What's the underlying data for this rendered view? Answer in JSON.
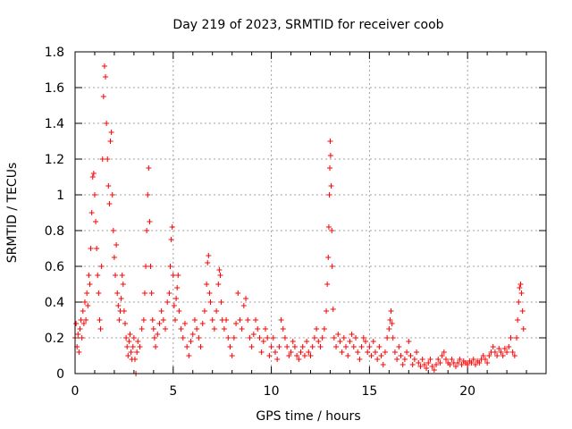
{
  "chart_data": {
    "type": "scatter",
    "title": "Day 219 of 2023, SRMTID for receiver coob",
    "xlabel": "GPS time / hours",
    "ylabel": "SRMTID / TECUs",
    "xlim": [
      0,
      24
    ],
    "ylim": [
      0,
      1.8
    ],
    "xticks": [
      0,
      5,
      10,
      15,
      20
    ],
    "yticks": [
      0,
      0.2,
      0.4,
      0.6,
      0.8,
      1,
      1.2,
      1.4,
      1.6,
      1.8
    ],
    "ytick_labels": [
      "0",
      "0.2",
      "0.4",
      "0.6",
      "0.8",
      "1",
      "1.2",
      "1.4",
      "1.6",
      "1.8"
    ],
    "grid": true,
    "marker": "+",
    "series": [
      {
        "name": "SRMTID",
        "color": "#ff0000",
        "points": [
          [
            0.0,
            0.2
          ],
          [
            0.05,
            0.28
          ],
          [
            0.1,
            0.15
          ],
          [
            0.15,
            0.22
          ],
          [
            0.2,
            0.12
          ],
          [
            0.25,
            0.25
          ],
          [
            0.3,
            0.3
          ],
          [
            0.35,
            0.2
          ],
          [
            0.4,
            0.35
          ],
          [
            0.45,
            0.28
          ],
          [
            0.5,
            0.4
          ],
          [
            0.55,
            0.3
          ],
          [
            0.6,
            0.45
          ],
          [
            0.65,
            0.38
          ],
          [
            0.7,
            0.55
          ],
          [
            0.75,
            0.5
          ],
          [
            0.8,
            0.7
          ],
          [
            0.85,
            0.9
          ],
          [
            0.9,
            1.1
          ],
          [
            0.95,
            1.12
          ],
          [
            1.0,
            1.0
          ],
          [
            1.05,
            0.85
          ],
          [
            1.1,
            0.7
          ],
          [
            1.15,
            0.55
          ],
          [
            1.2,
            0.45
          ],
          [
            1.25,
            0.3
          ],
          [
            1.3,
            0.25
          ],
          [
            1.35,
            0.6
          ],
          [
            1.4,
            1.2
          ],
          [
            1.45,
            1.55
          ],
          [
            1.5,
            1.72
          ],
          [
            1.55,
            1.66
          ],
          [
            1.6,
            1.4
          ],
          [
            1.65,
            1.2
          ],
          [
            1.7,
            1.05
          ],
          [
            1.75,
            0.95
          ],
          [
            1.8,
            1.3
          ],
          [
            1.85,
            1.35
          ],
          [
            1.9,
            1.0
          ],
          [
            1.95,
            0.8
          ],
          [
            2.0,
            0.65
          ],
          [
            2.05,
            0.55
          ],
          [
            2.1,
            0.72
          ],
          [
            2.15,
            0.45
          ],
          [
            2.2,
            0.38
          ],
          [
            2.25,
            0.3
          ],
          [
            2.3,
            0.35
          ],
          [
            2.35,
            0.42
          ],
          [
            2.4,
            0.55
          ],
          [
            2.45,
            0.5
          ],
          [
            2.5,
            0.35
          ],
          [
            2.55,
            0.28
          ],
          [
            2.6,
            0.2
          ],
          [
            2.65,
            0.15
          ],
          [
            2.7,
            0.1
          ],
          [
            2.75,
            0.18
          ],
          [
            2.8,
            0.22
          ],
          [
            2.85,
            0.12
          ],
          [
            2.9,
            0.08
          ],
          [
            2.95,
            0.15
          ],
          [
            3.0,
            0.2
          ],
          [
            3.05,
            0.08
          ],
          [
            3.1,
            0.0
          ],
          [
            3.15,
            0.12
          ],
          [
            3.2,
            0.18
          ],
          [
            3.3,
            0.15
          ],
          [
            3.4,
            0.25
          ],
          [
            3.5,
            0.3
          ],
          [
            3.55,
            0.45
          ],
          [
            3.6,
            0.6
          ],
          [
            3.65,
            0.8
          ],
          [
            3.7,
            1.0
          ],
          [
            3.75,
            1.15
          ],
          [
            3.8,
            0.85
          ],
          [
            3.85,
            0.6
          ],
          [
            3.9,
            0.45
          ],
          [
            3.95,
            0.3
          ],
          [
            4.0,
            0.25
          ],
          [
            4.05,
            0.2
          ],
          [
            4.1,
            0.15
          ],
          [
            4.2,
            0.22
          ],
          [
            4.3,
            0.28
          ],
          [
            4.4,
            0.35
          ],
          [
            4.5,
            0.3
          ],
          [
            4.6,
            0.25
          ],
          [
            4.7,
            0.4
          ],
          [
            4.8,
            0.45
          ],
          [
            4.85,
            0.6
          ],
          [
            4.9,
            0.75
          ],
          [
            4.95,
            0.82
          ],
          [
            5.0,
            0.55
          ],
          [
            5.05,
            0.38
          ],
          [
            5.1,
            0.3
          ],
          [
            5.15,
            0.42
          ],
          [
            5.2,
            0.48
          ],
          [
            5.25,
            0.55
          ],
          [
            5.3,
            0.35
          ],
          [
            5.4,
            0.25
          ],
          [
            5.5,
            0.2
          ],
          [
            5.6,
            0.28
          ],
          [
            5.7,
            0.15
          ],
          [
            5.8,
            0.1
          ],
          [
            5.9,
            0.18
          ],
          [
            6.0,
            0.22
          ],
          [
            6.1,
            0.3
          ],
          [
            6.2,
            0.25
          ],
          [
            6.3,
            0.2
          ],
          [
            6.4,
            0.15
          ],
          [
            6.5,
            0.28
          ],
          [
            6.6,
            0.35
          ],
          [
            6.7,
            0.5
          ],
          [
            6.75,
            0.62
          ],
          [
            6.8,
            0.66
          ],
          [
            6.85,
            0.45
          ],
          [
            6.9,
            0.4
          ],
          [
            7.0,
            0.3
          ],
          [
            7.1,
            0.25
          ],
          [
            7.2,
            0.35
          ],
          [
            7.3,
            0.5
          ],
          [
            7.35,
            0.58
          ],
          [
            7.4,
            0.55
          ],
          [
            7.45,
            0.4
          ],
          [
            7.5,
            0.3
          ],
          [
            7.6,
            0.25
          ],
          [
            7.7,
            0.3
          ],
          [
            7.8,
            0.2
          ],
          [
            7.9,
            0.15
          ],
          [
            8.0,
            0.1
          ],
          [
            8.1,
            0.2
          ],
          [
            8.2,
            0.28
          ],
          [
            8.3,
            0.45
          ],
          [
            8.4,
            0.3
          ],
          [
            8.5,
            0.25
          ],
          [
            8.6,
            0.38
          ],
          [
            8.7,
            0.42
          ],
          [
            8.8,
            0.3
          ],
          [
            8.9,
            0.2
          ],
          [
            9.0,
            0.15
          ],
          [
            9.1,
            0.22
          ],
          [
            9.2,
            0.3
          ],
          [
            9.3,
            0.25
          ],
          [
            9.4,
            0.2
          ],
          [
            9.5,
            0.12
          ],
          [
            9.6,
            0.18
          ],
          [
            9.7,
            0.25
          ],
          [
            9.8,
            0.2
          ],
          [
            9.9,
            0.1
          ],
          [
            10.0,
            0.15
          ],
          [
            10.1,
            0.2
          ],
          [
            10.2,
            0.12
          ],
          [
            10.3,
            0.08
          ],
          [
            10.4,
            0.15
          ],
          [
            10.5,
            0.3
          ],
          [
            10.6,
            0.25
          ],
          [
            10.7,
            0.2
          ],
          [
            10.8,
            0.15
          ],
          [
            10.9,
            0.1
          ],
          [
            11.0,
            0.12
          ],
          [
            11.1,
            0.18
          ],
          [
            11.2,
            0.15
          ],
          [
            11.3,
            0.1
          ],
          [
            11.4,
            0.08
          ],
          [
            11.5,
            0.12
          ],
          [
            11.6,
            0.15
          ],
          [
            11.7,
            0.1
          ],
          [
            11.8,
            0.18
          ],
          [
            11.9,
            0.12
          ],
          [
            12.0,
            0.1
          ],
          [
            12.1,
            0.15
          ],
          [
            12.2,
            0.2
          ],
          [
            12.3,
            0.25
          ],
          [
            12.4,
            0.18
          ],
          [
            12.5,
            0.15
          ],
          [
            12.6,
            0.2
          ],
          [
            12.7,
            0.25
          ],
          [
            12.8,
            0.35
          ],
          [
            12.85,
            0.5
          ],
          [
            12.9,
            0.65
          ],
          [
            12.93,
            0.82
          ],
          [
            12.96,
            1.0
          ],
          [
            12.98,
            1.15
          ],
          [
            13.0,
            1.3
          ],
          [
            13.02,
            1.22
          ],
          [
            13.05,
            1.05
          ],
          [
            13.08,
            0.8
          ],
          [
            13.1,
            0.6
          ],
          [
            13.15,
            0.36
          ],
          [
            13.2,
            0.2
          ],
          [
            13.3,
            0.15
          ],
          [
            13.4,
            0.22
          ],
          [
            13.5,
            0.18
          ],
          [
            13.6,
            0.12
          ],
          [
            13.7,
            0.2
          ],
          [
            13.8,
            0.15
          ],
          [
            13.9,
            0.1
          ],
          [
            14.0,
            0.18
          ],
          [
            14.1,
            0.22
          ],
          [
            14.2,
            0.15
          ],
          [
            14.3,
            0.2
          ],
          [
            14.4,
            0.12
          ],
          [
            14.5,
            0.08
          ],
          [
            14.6,
            0.15
          ],
          [
            14.7,
            0.2
          ],
          [
            14.8,
            0.18
          ],
          [
            14.9,
            0.12
          ],
          [
            15.0,
            0.15
          ],
          [
            15.1,
            0.1
          ],
          [
            15.2,
            0.18
          ],
          [
            15.3,
            0.12
          ],
          [
            15.4,
            0.08
          ],
          [
            15.5,
            0.15
          ],
          [
            15.6,
            0.1
          ],
          [
            15.7,
            0.05
          ],
          [
            15.8,
            0.12
          ],
          [
            15.9,
            0.2
          ],
          [
            16.0,
            0.25
          ],
          [
            16.05,
            0.3
          ],
          [
            16.1,
            0.35
          ],
          [
            16.15,
            0.28
          ],
          [
            16.2,
            0.2
          ],
          [
            16.3,
            0.12
          ],
          [
            16.4,
            0.08
          ],
          [
            16.5,
            0.15
          ],
          [
            16.6,
            0.1
          ],
          [
            16.7,
            0.05
          ],
          [
            16.8,
            0.08
          ],
          [
            16.9,
            0.12
          ],
          [
            17.0,
            0.18
          ],
          [
            17.1,
            0.1
          ],
          [
            17.2,
            0.05
          ],
          [
            17.3,
            0.08
          ],
          [
            17.4,
            0.12
          ],
          [
            17.5,
            0.06
          ],
          [
            17.6,
            0.04
          ],
          [
            17.7,
            0.08
          ],
          [
            17.8,
            0.05
          ],
          [
            17.9,
            0.03
          ],
          [
            18.0,
            0.06
          ],
          [
            18.1,
            0.08
          ],
          [
            18.2,
            0.04
          ],
          [
            18.3,
            0.02
          ],
          [
            18.4,
            0.05
          ],
          [
            18.5,
            0.08
          ],
          [
            18.6,
            0.06
          ],
          [
            18.7,
            0.1
          ],
          [
            18.8,
            0.12
          ],
          [
            18.9,
            0.08
          ],
          [
            19.0,
            0.06
          ],
          [
            19.1,
            0.05
          ],
          [
            19.2,
            0.08
          ],
          [
            19.3,
            0.06
          ],
          [
            19.4,
            0.04
          ],
          [
            19.5,
            0.06
          ],
          [
            19.6,
            0.08
          ],
          [
            19.7,
            0.05
          ],
          [
            19.8,
            0.07
          ],
          [
            19.9,
            0.06
          ],
          [
            20.0,
            0.05
          ],
          [
            20.1,
            0.07
          ],
          [
            20.2,
            0.06
          ],
          [
            20.3,
            0.08
          ],
          [
            20.4,
            0.05
          ],
          [
            20.5,
            0.07
          ],
          [
            20.6,
            0.06
          ],
          [
            20.7,
            0.08
          ],
          [
            20.8,
            0.1
          ],
          [
            20.9,
            0.08
          ],
          [
            21.0,
            0.06
          ],
          [
            21.1,
            0.1
          ],
          [
            21.2,
            0.12
          ],
          [
            21.3,
            0.15
          ],
          [
            21.4,
            0.12
          ],
          [
            21.5,
            0.1
          ],
          [
            21.6,
            0.14
          ],
          [
            21.7,
            0.12
          ],
          [
            21.8,
            0.1
          ],
          [
            21.9,
            0.14
          ],
          [
            22.0,
            0.12
          ],
          [
            22.1,
            0.15
          ],
          [
            22.2,
            0.2
          ],
          [
            22.3,
            0.12
          ],
          [
            22.4,
            0.1
          ],
          [
            22.5,
            0.2
          ],
          [
            22.55,
            0.3
          ],
          [
            22.6,
            0.4
          ],
          [
            22.65,
            0.48
          ],
          [
            22.7,
            0.5
          ],
          [
            22.75,
            0.45
          ],
          [
            22.8,
            0.35
          ],
          [
            22.85,
            0.25
          ]
        ]
      }
    ]
  }
}
